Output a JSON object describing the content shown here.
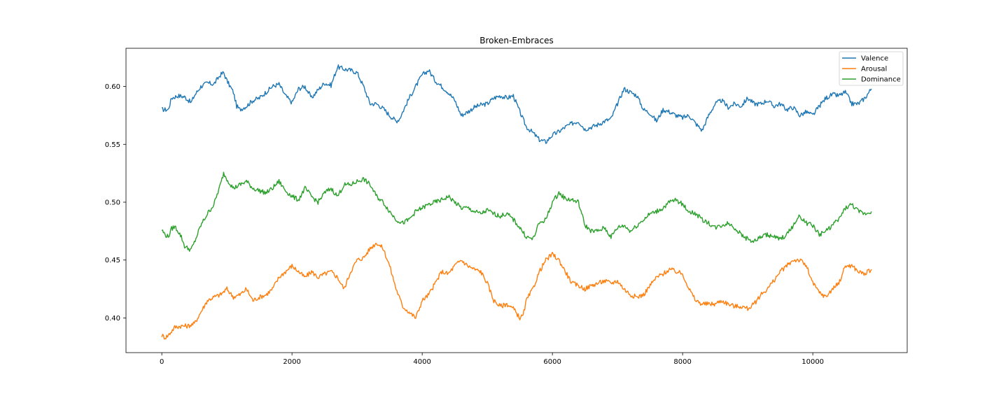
{
  "chart_data": {
    "type": "line",
    "title": "Broken-Embraces",
    "xlabel": "",
    "ylabel": "",
    "xlim": [
      -550,
      11450
    ],
    "ylim": [
      0.37,
      0.633
    ],
    "xticks": [
      0,
      2000,
      4000,
      6000,
      8000,
      10000
    ],
    "xtick_labels": [
      "0",
      "2000",
      "4000",
      "6000",
      "8000",
      "10000"
    ],
    "yticks": [
      0.4,
      0.45,
      0.5,
      0.55,
      0.6
    ],
    "ytick_labels": [
      "0.40",
      "0.45",
      "0.50",
      "0.55",
      "0.60"
    ],
    "grid": false,
    "legend_position": "top-right",
    "series": [
      {
        "name": "Valence",
        "color": "#1f77b4",
        "x": [
          0,
          100,
          150,
          250,
          350,
          450,
          500,
          600,
          700,
          800,
          900,
          950,
          1000,
          1100,
          1150,
          1200,
          1300,
          1400,
          1500,
          1600,
          1700,
          1800,
          1900,
          2000,
          2100,
          2200,
          2300,
          2400,
          2500,
          2600,
          2700,
          2800,
          2900,
          3000,
          3100,
          3200,
          3300,
          3400,
          3500,
          3600,
          3650,
          3700,
          3800,
          3900,
          4000,
          4100,
          4200,
          4300,
          4400,
          4500,
          4600,
          4700,
          4800,
          4900,
          5000,
          5100,
          5200,
          5300,
          5400,
          5500,
          5600,
          5700,
          5800,
          5900,
          6000,
          6100,
          6200,
          6300,
          6400,
          6500,
          6600,
          6700,
          6800,
          6900,
          7000,
          7100,
          7200,
          7300,
          7400,
          7500,
          7600,
          7700,
          7800,
          7900,
          8000,
          8100,
          8200,
          8300,
          8400,
          8500,
          8600,
          8700,
          8800,
          8900,
          9000,
          9100,
          9200,
          9300,
          9400,
          9500,
          9600,
          9700,
          9800,
          9900,
          10000,
          10100,
          10200,
          10300,
          10400,
          10500,
          10600,
          10700,
          10800,
          10900
        ],
        "values": [
          0.58,
          0.58,
          0.59,
          0.592,
          0.591,
          0.586,
          0.592,
          0.6,
          0.603,
          0.602,
          0.61,
          0.612,
          0.605,
          0.595,
          0.583,
          0.58,
          0.583,
          0.588,
          0.59,
          0.595,
          0.6,
          0.602,
          0.592,
          0.586,
          0.598,
          0.6,
          0.59,
          0.597,
          0.603,
          0.601,
          0.617,
          0.615,
          0.614,
          0.612,
          0.6,
          0.585,
          0.585,
          0.581,
          0.575,
          0.57,
          0.572,
          0.578,
          0.59,
          0.6,
          0.61,
          0.614,
          0.605,
          0.6,
          0.595,
          0.588,
          0.575,
          0.578,
          0.582,
          0.584,
          0.585,
          0.59,
          0.592,
          0.59,
          0.592,
          0.578,
          0.565,
          0.56,
          0.554,
          0.552,
          0.558,
          0.561,
          0.565,
          0.568,
          0.57,
          0.563,
          0.565,
          0.567,
          0.57,
          0.572,
          0.585,
          0.598,
          0.595,
          0.592,
          0.58,
          0.577,
          0.57,
          0.58,
          0.578,
          0.575,
          0.573,
          0.575,
          0.568,
          0.562,
          0.575,
          0.585,
          0.588,
          0.582,
          0.585,
          0.583,
          0.59,
          0.585,
          0.585,
          0.588,
          0.583,
          0.585,
          0.58,
          0.582,
          0.575,
          0.578,
          0.575,
          0.583,
          0.59,
          0.593,
          0.592,
          0.595,
          0.585,
          0.585,
          0.59,
          0.598
        ]
      },
      {
        "name": "Arousal",
        "color": "#ff7f0e",
        "x": [
          0,
          50,
          100,
          200,
          300,
          400,
          500,
          600,
          700,
          800,
          900,
          1000,
          1100,
          1200,
          1300,
          1400,
          1500,
          1600,
          1700,
          1800,
          1900,
          2000,
          2100,
          2200,
          2300,
          2400,
          2500,
          2600,
          2700,
          2800,
          2900,
          3000,
          3100,
          3200,
          3300,
          3400,
          3500,
          3600,
          3700,
          3800,
          3900,
          4000,
          4100,
          4200,
          4300,
          4400,
          4500,
          4600,
          4700,
          4800,
          4900,
          5000,
          5100,
          5200,
          5300,
          5400,
          5500,
          5550,
          5600,
          5700,
          5800,
          5900,
          6000,
          6100,
          6200,
          6300,
          6400,
          6500,
          6600,
          6700,
          6800,
          6900,
          7000,
          7100,
          7200,
          7300,
          7400,
          7500,
          7600,
          7700,
          7800,
          7900,
          8000,
          8100,
          8200,
          8300,
          8400,
          8500,
          8600,
          8700,
          8800,
          8900,
          9000,
          9100,
          9200,
          9300,
          9400,
          9500,
          9600,
          9700,
          9800,
          9900,
          10000,
          10100,
          10200,
          10300,
          10400,
          10500,
          10600,
          10700,
          10800,
          10900
        ],
        "values": [
          0.385,
          0.383,
          0.385,
          0.392,
          0.393,
          0.393,
          0.395,
          0.405,
          0.415,
          0.418,
          0.42,
          0.425,
          0.418,
          0.42,
          0.425,
          0.415,
          0.418,
          0.42,
          0.425,
          0.435,
          0.44,
          0.445,
          0.44,
          0.435,
          0.44,
          0.435,
          0.438,
          0.44,
          0.435,
          0.425,
          0.44,
          0.45,
          0.452,
          0.46,
          0.465,
          0.46,
          0.445,
          0.425,
          0.41,
          0.405,
          0.4,
          0.415,
          0.42,
          0.43,
          0.44,
          0.438,
          0.445,
          0.45,
          0.445,
          0.442,
          0.44,
          0.43,
          0.415,
          0.41,
          0.412,
          0.408,
          0.4,
          0.402,
          0.415,
          0.425,
          0.44,
          0.45,
          0.455,
          0.45,
          0.44,
          0.43,
          0.428,
          0.425,
          0.428,
          0.43,
          0.432,
          0.43,
          0.432,
          0.425,
          0.42,
          0.418,
          0.42,
          0.428,
          0.435,
          0.438,
          0.442,
          0.44,
          0.438,
          0.425,
          0.415,
          0.412,
          0.412,
          0.412,
          0.415,
          0.412,
          0.41,
          0.41,
          0.408,
          0.412,
          0.42,
          0.425,
          0.432,
          0.44,
          0.445,
          0.45,
          0.45,
          0.445,
          0.43,
          0.422,
          0.418,
          0.425,
          0.43,
          0.445,
          0.445,
          0.44,
          0.438,
          0.442
        ]
      },
      {
        "name": "Dominance",
        "color": "#2ca02c",
        "x": [
          0,
          50,
          100,
          150,
          200,
          250,
          300,
          350,
          400,
          450,
          500,
          600,
          700,
          800,
          900,
          950,
          1000,
          1100,
          1200,
          1300,
          1400,
          1500,
          1600,
          1700,
          1800,
          1900,
          2000,
          2100,
          2200,
          2300,
          2400,
          2500,
          2600,
          2700,
          2800,
          2900,
          3000,
          3100,
          3200,
          3300,
          3400,
          3500,
          3600,
          3700,
          3800,
          3900,
          4000,
          4100,
          4200,
          4300,
          4400,
          4500,
          4600,
          4700,
          4800,
          4900,
          5000,
          5100,
          5200,
          5300,
          5400,
          5500,
          5600,
          5700,
          5800,
          5900,
          6000,
          6100,
          6200,
          6300,
          6400,
          6500,
          6600,
          6700,
          6800,
          6900,
          7000,
          7100,
          7200,
          7300,
          7400,
          7500,
          7600,
          7700,
          7800,
          7900,
          8000,
          8100,
          8200,
          8300,
          8400,
          8500,
          8600,
          8700,
          8800,
          8900,
          9000,
          9100,
          9200,
          9300,
          9400,
          9500,
          9600,
          9700,
          9800,
          9900,
          10000,
          10100,
          10200,
          10300,
          10400,
          10500,
          10600,
          10700,
          10800,
          10900
        ],
        "values": [
          0.476,
          0.472,
          0.47,
          0.477,
          0.479,
          0.475,
          0.47,
          0.462,
          0.46,
          0.459,
          0.465,
          0.48,
          0.49,
          0.498,
          0.515,
          0.525,
          0.52,
          0.512,
          0.515,
          0.518,
          0.512,
          0.51,
          0.508,
          0.512,
          0.518,
          0.51,
          0.505,
          0.502,
          0.512,
          0.505,
          0.5,
          0.508,
          0.512,
          0.505,
          0.515,
          0.515,
          0.518,
          0.52,
          0.515,
          0.505,
          0.5,
          0.492,
          0.485,
          0.482,
          0.485,
          0.492,
          0.495,
          0.498,
          0.5,
          0.502,
          0.505,
          0.5,
          0.495,
          0.495,
          0.492,
          0.49,
          0.493,
          0.49,
          0.488,
          0.49,
          0.485,
          0.478,
          0.47,
          0.468,
          0.482,
          0.485,
          0.5,
          0.508,
          0.503,
          0.502,
          0.5,
          0.48,
          0.475,
          0.475,
          0.478,
          0.47,
          0.478,
          0.48,
          0.475,
          0.48,
          0.485,
          0.49,
          0.492,
          0.495,
          0.5,
          0.502,
          0.498,
          0.492,
          0.49,
          0.485,
          0.482,
          0.478,
          0.48,
          0.482,
          0.478,
          0.472,
          0.468,
          0.466,
          0.47,
          0.472,
          0.47,
          0.468,
          0.472,
          0.48,
          0.488,
          0.482,
          0.48,
          0.472,
          0.475,
          0.48,
          0.485,
          0.495,
          0.498,
          0.492,
          0.49,
          0.492
        ]
      }
    ]
  }
}
